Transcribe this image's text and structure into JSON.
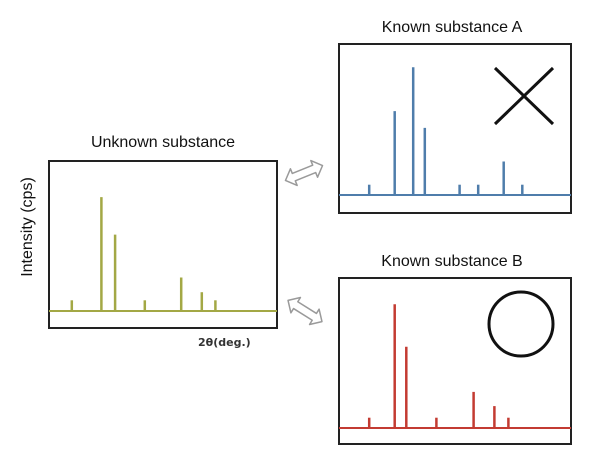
{
  "y_axis_label": "Intensity (cps)",
  "x_axis_label": "2θ(deg.)",
  "colors": {
    "unknown": "#a3a845",
    "known_a": "#4f7dab",
    "known_b": "#c33b32",
    "frame": "#222222",
    "arrow": "#9a9a9a"
  },
  "panels": {
    "unknown": {
      "title": "Unknown substance",
      "peaks": [
        {
          "pos": 0.1,
          "height": 0.08
        },
        {
          "pos": 0.23,
          "height": 0.85
        },
        {
          "pos": 0.29,
          "height": 0.57
        },
        {
          "pos": 0.42,
          "height": 0.08
        },
        {
          "pos": 0.58,
          "height": 0.25
        },
        {
          "pos": 0.67,
          "height": 0.14
        },
        {
          "pos": 0.73,
          "height": 0.08
        }
      ]
    },
    "known_a": {
      "title": "Known substance A",
      "verdict_icon": "cross-icon",
      "peaks": [
        {
          "pos": 0.13,
          "height": 0.08
        },
        {
          "pos": 0.24,
          "height": 0.65
        },
        {
          "pos": 0.32,
          "height": 0.99
        },
        {
          "pos": 0.37,
          "height": 0.52
        },
        {
          "pos": 0.52,
          "height": 0.08
        },
        {
          "pos": 0.6,
          "height": 0.08
        },
        {
          "pos": 0.71,
          "height": 0.26
        },
        {
          "pos": 0.79,
          "height": 0.08
        }
      ]
    },
    "known_b": {
      "title": "Known substance B",
      "verdict_icon": "circle-icon",
      "peaks": [
        {
          "pos": 0.13,
          "height": 0.08
        },
        {
          "pos": 0.24,
          "height": 0.96
        },
        {
          "pos": 0.29,
          "height": 0.63
        },
        {
          "pos": 0.42,
          "height": 0.08
        },
        {
          "pos": 0.58,
          "height": 0.28
        },
        {
          "pos": 0.67,
          "height": 0.17
        },
        {
          "pos": 0.73,
          "height": 0.08
        }
      ]
    }
  }
}
